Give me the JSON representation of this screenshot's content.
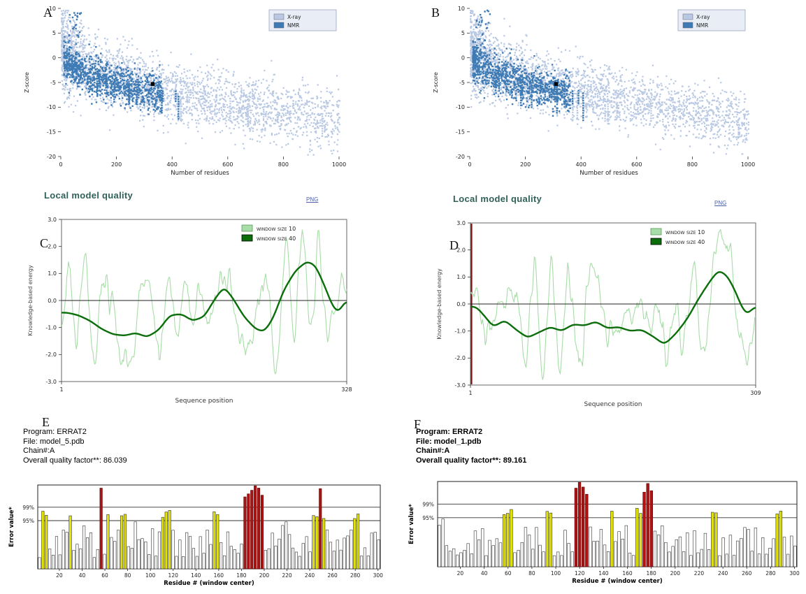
{
  "chart_data": [
    {
      "panel": "A",
      "type": "scatter",
      "xlabel": "Number of residues",
      "ylabel": "Z-score",
      "xlim": [
        0,
        1000
      ],
      "ylim": [
        -20,
        10
      ],
      "xticks": [
        0,
        200,
        400,
        600,
        800,
        1000
      ],
      "yticks": [
        10,
        5,
        0,
        -5,
        -10,
        -15,
        -20
      ],
      "legend": [
        {
          "label": "X-ray",
          "color": "#b9c9e3"
        },
        {
          "label": "NMR",
          "color": "#3e7ab3"
        }
      ],
      "model_point": {
        "x": 330,
        "y": -5.3
      },
      "model_point_color": "#000000",
      "seed": 101
    },
    {
      "panel": "B",
      "type": "scatter",
      "xlabel": "Number of residues",
      "ylabel": "Z-score",
      "xlim": [
        0,
        1000
      ],
      "ylim": [
        -20,
        10
      ],
      "xticks": [
        0,
        200,
        400,
        600,
        800,
        1000
      ],
      "yticks": [
        10,
        5,
        0,
        -5,
        -10,
        -15,
        -20
      ],
      "legend": [
        {
          "label": "X-ray",
          "color": "#b9c9e3"
        },
        {
          "label": "NMR",
          "color": "#3e7ab3"
        }
      ],
      "model_point": {
        "x": 310,
        "y": -5.3
      },
      "model_point_color": "#000000",
      "seed": 202
    },
    {
      "panel": "C",
      "type": "line",
      "title": "Local model quality",
      "png_label": "PNG",
      "xlabel": "Sequence position",
      "ylabel": "Knowledge-based energy",
      "xlim": [
        1,
        328
      ],
      "ylim": [
        -3,
        3
      ],
      "ytick_labels": [
        "3.0",
        "2.0",
        "1.0",
        "0.0",
        "-1.0",
        "-2.0",
        "-3.0"
      ],
      "xtick_labels": [
        "1",
        "328"
      ],
      "legend": [
        {
          "label": "window size 10",
          "color": "#a8dca8"
        },
        {
          "label": "window size 40",
          "color": "#0b6e0b"
        }
      ],
      "window40_points": [
        [
          0.02,
          -0.45
        ],
        [
          0.06,
          -0.55
        ],
        [
          0.1,
          -0.75
        ],
        [
          0.14,
          -1.05
        ],
        [
          0.18,
          -1.25
        ],
        [
          0.22,
          -1.3
        ],
        [
          0.26,
          -1.2
        ],
        [
          0.3,
          -1.35
        ],
        [
          0.34,
          -1.1
        ],
        [
          0.38,
          -0.55
        ],
        [
          0.42,
          -0.5
        ],
        [
          0.46,
          -0.75
        ],
        [
          0.5,
          -0.6
        ],
        [
          0.54,
          0.1
        ],
        [
          0.57,
          0.5
        ],
        [
          0.6,
          0.1
        ],
        [
          0.64,
          -0.6
        ],
        [
          0.68,
          -1.05
        ],
        [
          0.71,
          -1.15
        ],
        [
          0.74,
          -0.7
        ],
        [
          0.78,
          0.4
        ],
        [
          0.82,
          1.1
        ],
        [
          0.86,
          1.45
        ],
        [
          0.89,
          1.3
        ],
        [
          0.92,
          0.6
        ],
        [
          0.95,
          -0.2
        ],
        [
          0.97,
          -0.45
        ],
        [
          1.0,
          0.05
        ]
      ],
      "seed": 303
    },
    {
      "panel": "D",
      "type": "line",
      "title": "Local model quality",
      "png_label": "PNG",
      "xlabel": "Sequence position",
      "ylabel": "Knowledge-based energy",
      "xlim": [
        1,
        309
      ],
      "ylim": [
        -3,
        3
      ],
      "ytick_labels": [
        "3.0",
        "2.0",
        "1.0",
        "0.0",
        "-1.0",
        "-2.0",
        "-3.0"
      ],
      "xtick_labels": [
        "1",
        "309"
      ],
      "legend": [
        {
          "label": "window size 10",
          "color": "#a8dca8"
        },
        {
          "label": "window size 40",
          "color": "#0b6e0b"
        }
      ],
      "edge_line_color": "#7a1818",
      "window40_points": [
        [
          0.02,
          -0.1
        ],
        [
          0.05,
          -0.45
        ],
        [
          0.08,
          -0.85
        ],
        [
          0.12,
          -0.6
        ],
        [
          0.16,
          -0.95
        ],
        [
          0.2,
          -1.25
        ],
        [
          0.24,
          -1.05
        ],
        [
          0.28,
          -0.85
        ],
        [
          0.32,
          -1.0
        ],
        [
          0.36,
          -0.75
        ],
        [
          0.4,
          -0.8
        ],
        [
          0.44,
          -0.65
        ],
        [
          0.48,
          -0.9
        ],
        [
          0.52,
          -0.85
        ],
        [
          0.56,
          -1.0
        ],
        [
          0.6,
          -0.95
        ],
        [
          0.64,
          -1.2
        ],
        [
          0.68,
          -1.5
        ],
        [
          0.72,
          -1.1
        ],
        [
          0.76,
          -0.55
        ],
        [
          0.8,
          0.2
        ],
        [
          0.84,
          0.85
        ],
        [
          0.87,
          1.25
        ],
        [
          0.9,
          1.05
        ],
        [
          0.93,
          0.45
        ],
        [
          0.95,
          -0.1
        ],
        [
          0.97,
          -0.4
        ],
        [
          1.0,
          -0.05
        ]
      ],
      "seed": 404
    },
    {
      "panel": "E",
      "type": "bar",
      "info_lines": [
        "Program: ERRAT2",
        "File: model_5.pdb",
        "Chain#:A",
        "Overall quality factor**: 86.039"
      ],
      "xlabel": "Residue # (window center)",
      "ylabel": "Error value*",
      "threshold_labels": [
        "99%",
        "95%"
      ],
      "xticks": [
        20,
        40,
        60,
        80,
        100,
        120,
        140,
        160,
        180,
        200,
        220,
        240,
        260,
        280,
        300
      ],
      "xlim": [
        1,
        302
      ],
      "bar_color_normal": "#ffffff",
      "bar_color_warn": "#e4e400",
      "bar_color_error": "#b01212",
      "regions": [
        {
          "from": 3,
          "to": 9,
          "level": "yellow"
        },
        {
          "from": 27,
          "to": 31,
          "level": "yellow"
        },
        {
          "from": 56,
          "to": 58,
          "level": "red"
        },
        {
          "from": 60,
          "to": 64,
          "level": "yellow"
        },
        {
          "from": 73,
          "to": 78,
          "level": "yellow"
        },
        {
          "from": 108,
          "to": 117,
          "level": "yellow"
        },
        {
          "from": 156,
          "to": 162,
          "level": "yellow"
        },
        {
          "from": 183,
          "to": 201,
          "level": "red"
        },
        {
          "from": 243,
          "to": 247,
          "level": "yellow"
        },
        {
          "from": 248,
          "to": 250,
          "level": "red"
        },
        {
          "from": 251,
          "to": 254,
          "level": "yellow"
        },
        {
          "from": 277,
          "to": 283,
          "level": "yellow"
        }
      ],
      "seed": 505
    },
    {
      "panel": "F",
      "type": "bar",
      "info_lines": [
        "Program: ERRAT2",
        "File: model_1.pdb",
        "Chain#:A",
        "Overall quality factor**: 89.161"
      ],
      "xlabel": "Residue # (window center)",
      "ylabel": "Error value*",
      "threshold_labels": [
        "99%",
        "95%"
      ],
      "xticks": [
        20,
        40,
        60,
        80,
        100,
        120,
        140,
        160,
        180,
        200,
        220,
        240,
        260,
        280,
        300
      ],
      "xlim": [
        1,
        302
      ],
      "bar_color_normal": "#ffffff",
      "bar_color_warn": "#e4e400",
      "bar_color_error": "#b01212",
      "regions": [
        {
          "from": 56,
          "to": 64,
          "level": "yellow"
        },
        {
          "from": 92,
          "to": 97,
          "level": "yellow"
        },
        {
          "from": 114,
          "to": 126,
          "level": "red"
        },
        {
          "from": 145,
          "to": 149,
          "level": "yellow"
        },
        {
          "from": 167,
          "to": 173,
          "level": "yellow"
        },
        {
          "from": 174,
          "to": 181,
          "level": "red"
        },
        {
          "from": 229,
          "to": 236,
          "level": "yellow"
        },
        {
          "from": 285,
          "to": 291,
          "level": "yellow"
        }
      ],
      "seed": 606
    }
  ]
}
